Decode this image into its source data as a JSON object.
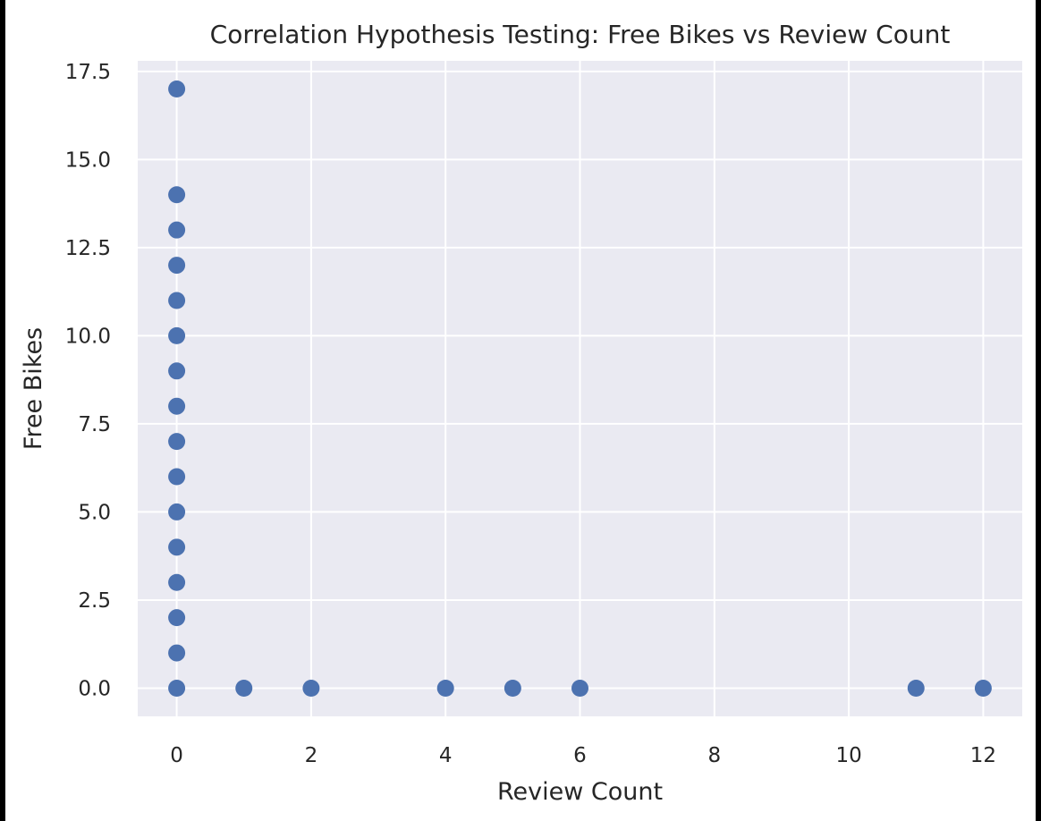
{
  "chart_data": {
    "type": "scatter",
    "title": "Correlation Hypothesis Testing: Free Bikes vs Review Count",
    "xlabel": "Review Count",
    "ylabel": "Free Bikes",
    "xlim": [
      -0.58,
      12.58
    ],
    "ylim": [
      -0.8,
      17.8
    ],
    "xticks": [
      0,
      2,
      4,
      6,
      8,
      10,
      12
    ],
    "xtick_labels": [
      "0",
      "2",
      "4",
      "6",
      "8",
      "10",
      "12"
    ],
    "yticks": [
      0,
      2.5,
      5,
      7.5,
      10,
      12.5,
      15,
      17.5
    ],
    "ytick_labels": [
      "0.0",
      "2.5",
      "5.0",
      "7.5",
      "10.0",
      "12.5",
      "15.0",
      "17.5"
    ],
    "grid": true,
    "style": {
      "background": "#eaeaf2",
      "grid": "#ffffff",
      "marker": "#4c72b0"
    },
    "points": [
      {
        "x": 0,
        "y": 17
      },
      {
        "x": 0,
        "y": 14
      },
      {
        "x": 0,
        "y": 13
      },
      {
        "x": 0,
        "y": 12
      },
      {
        "x": 0,
        "y": 11
      },
      {
        "x": 0,
        "y": 10
      },
      {
        "x": 0,
        "y": 9
      },
      {
        "x": 0,
        "y": 8
      },
      {
        "x": 0,
        "y": 7
      },
      {
        "x": 0,
        "y": 6
      },
      {
        "x": 0,
        "y": 5
      },
      {
        "x": 0,
        "y": 4
      },
      {
        "x": 0,
        "y": 3
      },
      {
        "x": 0,
        "y": 2
      },
      {
        "x": 0,
        "y": 1
      },
      {
        "x": 0,
        "y": 0
      },
      {
        "x": 1,
        "y": 0
      },
      {
        "x": 2,
        "y": 0
      },
      {
        "x": 4,
        "y": 0
      },
      {
        "x": 5,
        "y": 0
      },
      {
        "x": 6,
        "y": 0
      },
      {
        "x": 11,
        "y": 0
      },
      {
        "x": 12,
        "y": 0
      }
    ]
  }
}
